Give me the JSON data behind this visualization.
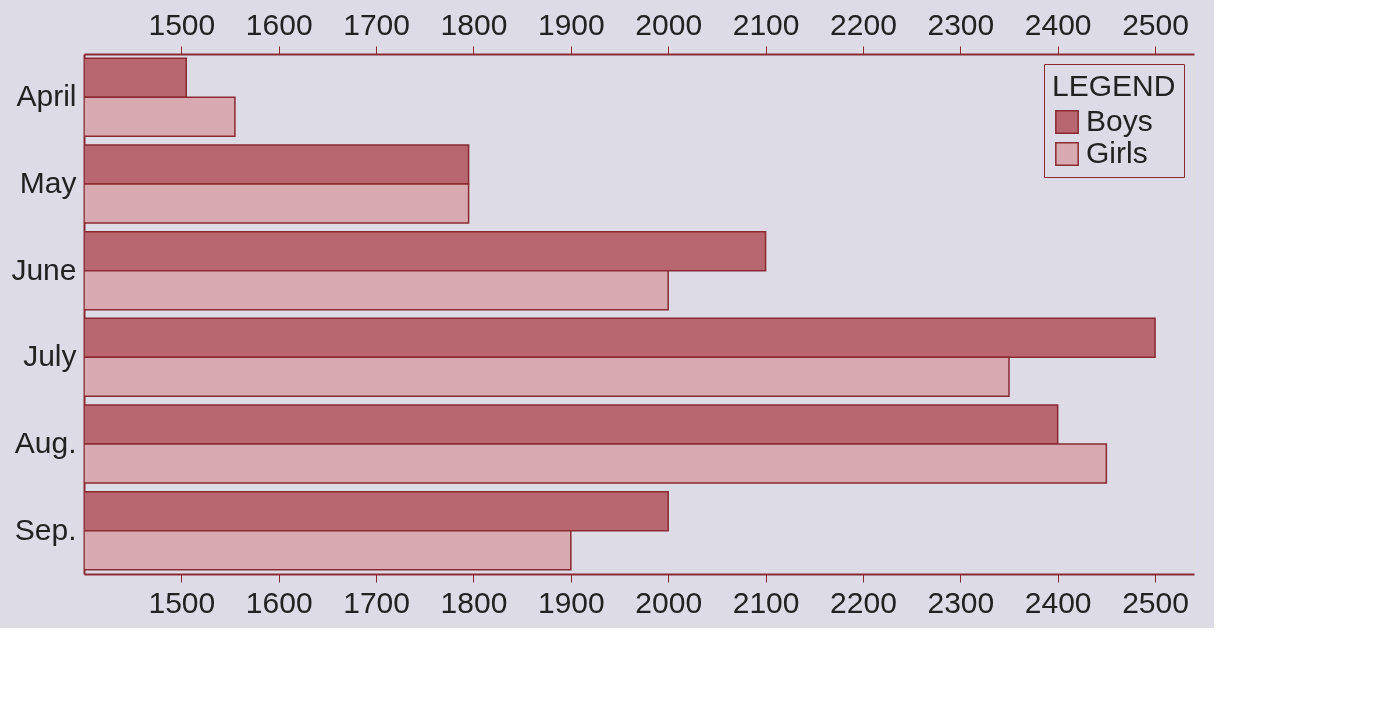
{
  "chart_data": {
    "type": "bar",
    "orientation": "horizontal",
    "legend_title": "LEGEND",
    "categories": [
      "April",
      "May",
      "June",
      "July",
      "Aug.",
      "Sep."
    ],
    "series": [
      {
        "name": "Boys",
        "color": "#b8666f",
        "values": [
          1505,
          1795,
          2100,
          2500,
          2400,
          2000
        ]
      },
      {
        "name": "Girls",
        "color": "#d6aab0",
        "values": [
          1555,
          1795,
          2000,
          2350,
          2450,
          1900
        ]
      }
    ],
    "xlim": [
      1400,
      2540
    ],
    "xticks": [
      1500,
      1600,
      1700,
      1800,
      1900,
      2000,
      2100,
      2200,
      2300,
      2400,
      2500
    ],
    "x2lim": [
      1400,
      2540
    ],
    "x2ticks": [
      1500,
      1600,
      1700,
      1800,
      1900,
      2000,
      2100,
      2200,
      2300,
      2400,
      2500
    ],
    "grid": false,
    "legend": "top right"
  }
}
